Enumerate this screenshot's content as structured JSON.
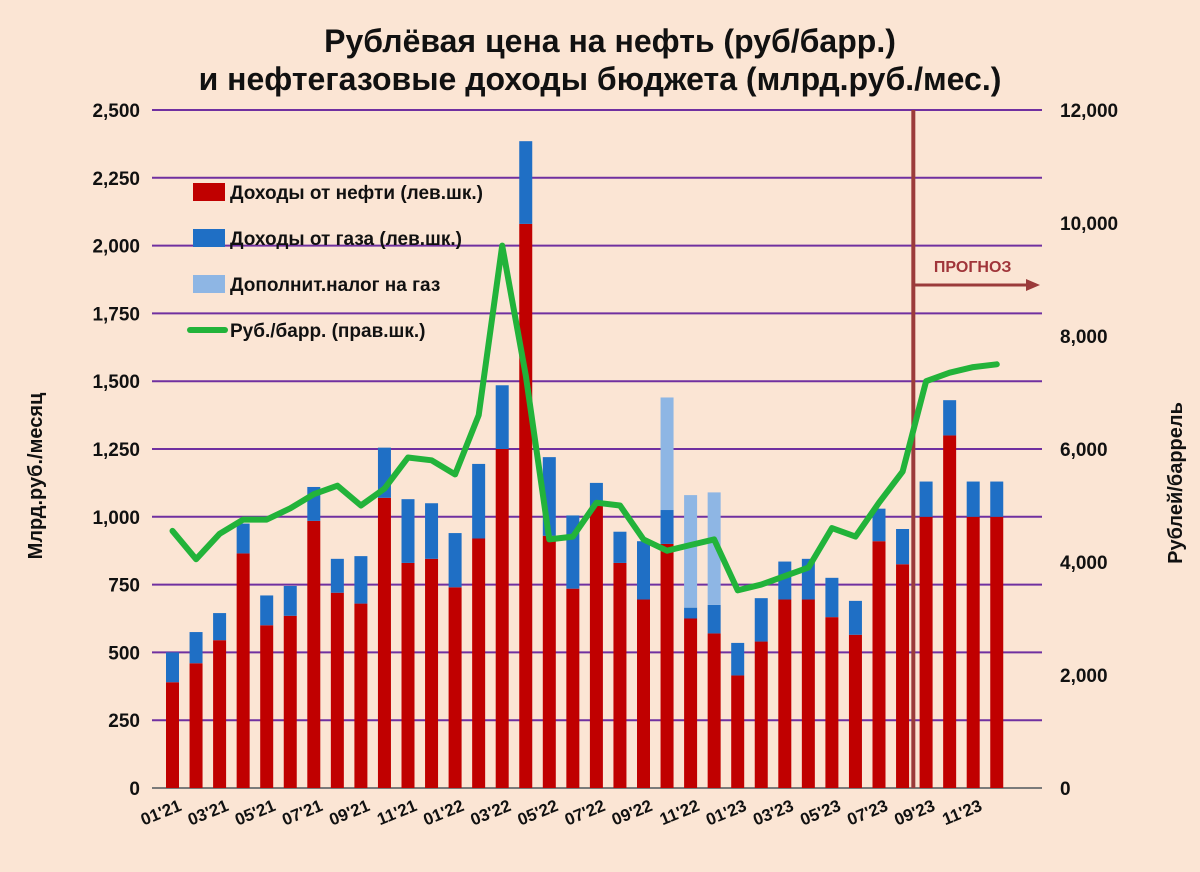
{
  "chart_data": {
    "type": "bar",
    "title_lines": [
      "Рублёвая цена на нефть (руб/барр.)",
      "и нефтегазовые доходы бюджета (млрд.руб./мес.)"
    ],
    "ylabel": "Млрд.руб./месяц",
    "y2label": "Рублей/баррель",
    "ylim": [
      0,
      2500
    ],
    "y2lim": [
      0,
      12000
    ],
    "yticks": [
      "0",
      "250",
      "500",
      "750",
      "1,000",
      "1,250",
      "1,500",
      "1,750",
      "2,000",
      "2,250",
      "2,500"
    ],
    "y2ticks": [
      "0",
      "2,000",
      "4,000",
      "6,000",
      "8,000",
      "10,000",
      "12,000"
    ],
    "grid": true,
    "stacked": true,
    "legend_position": "top-left",
    "categories": [
      "01'21",
      "02'21",
      "03'21",
      "04'21",
      "05'21",
      "06'21",
      "07'21",
      "08'21",
      "09'21",
      "10'21",
      "11'21",
      "12'21",
      "01'22",
      "02'22",
      "03'22",
      "04'22",
      "05'22",
      "06'22",
      "07'22",
      "08'22",
      "09'22",
      "10'22",
      "11'22",
      "12'22",
      "01'23",
      "02'23",
      "03'23",
      "04'23",
      "05'23",
      "06'23",
      "07'23",
      "08'23",
      "09'23",
      "10'23",
      "11'23",
      "12'23"
    ],
    "xtick_labels": [
      "01'21",
      "03'21",
      "05'21",
      "07'21",
      "09'21",
      "11'21",
      "01'22",
      "03'22",
      "05'22",
      "07'22",
      "09'22",
      "11'22",
      "01'23",
      "03'23",
      "05'23",
      "07'23",
      "09'23",
      "11'23"
    ],
    "series": [
      {
        "name": "Доходы от нефти (лев.шк.)",
        "color": "#c00000",
        "values": [
          390,
          460,
          545,
          865,
          600,
          635,
          985,
          720,
          680,
          1070,
          830,
          845,
          740,
          920,
          1250,
          2080,
          930,
          735,
          1040,
          830,
          695,
          900,
          625,
          570,
          415,
          540,
          695,
          695,
          630,
          565,
          910,
          825,
          1000,
          1300,
          1000,
          1000
        ]
      },
      {
        "name": "Доходы от газа (лев.шк.)",
        "color": "#1f6fc5",
        "values": [
          110,
          115,
          100,
          110,
          110,
          110,
          125,
          125,
          175,
          185,
          235,
          205,
          200,
          275,
          235,
          305,
          290,
          270,
          85,
          115,
          215,
          125,
          40,
          105,
          120,
          160,
          140,
          150,
          145,
          125,
          120,
          130,
          130,
          130,
          130,
          130
        ]
      },
      {
        "name": "Дополнит.налог на газ",
        "color": "#8eb6e4",
        "values": [
          0,
          0,
          0,
          0,
          0,
          0,
          0,
          0,
          0,
          0,
          0,
          0,
          0,
          0,
          0,
          0,
          0,
          0,
          0,
          0,
          0,
          415,
          415,
          415,
          0,
          0,
          0,
          0,
          0,
          0,
          0,
          0,
          0,
          0,
          0,
          0
        ]
      },
      {
        "name": "Руб./барр. (прав.шк.)",
        "color": "#22b33a",
        "axis": "right",
        "type": "line",
        "values": [
          4550,
          4050,
          4500,
          4750,
          4750,
          4950,
          5200,
          5350,
          5000,
          5300,
          5850,
          5800,
          5550,
          6600,
          9600,
          7300,
          4400,
          4450,
          5050,
          5000,
          4400,
          4200,
          4300,
          4400,
          3500,
          3600,
          3750,
          3900,
          4600,
          4450,
          5050,
          5600,
          7200,
          7350,
          7450,
          7500
        ]
      }
    ],
    "forecast_label": "ПРОГНОЗ",
    "forecast_start_category": "09'23"
  }
}
